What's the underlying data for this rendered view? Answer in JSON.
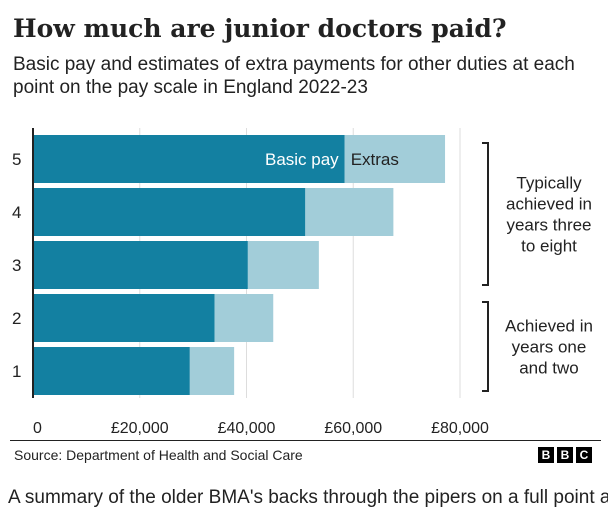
{
  "header": {
    "title": "How much are junior doctors paid?",
    "subtitle": "Basic pay and estimates of extra payments for other duties at each point on the pay scale in England 2022-23"
  },
  "colors": {
    "basic_pay": "#1380A1",
    "extras": "#A2CDD9",
    "grid": "#DDDDDD",
    "axis": "#222222",
    "text": "#222222"
  },
  "chart_data": {
    "type": "bar",
    "orientation": "horizontal",
    "stacked": true,
    "categories": [
      "5",
      "4",
      "3",
      "2",
      "1"
    ],
    "series": [
      {
        "name": "Basic pay",
        "values": [
          58398,
          51017,
          40257,
          34012,
          29384
        ]
      },
      {
        "name": "Extras",
        "values": [
          18800,
          16500,
          13300,
          11000,
          8300
        ]
      }
    ],
    "xlim": [
      0,
      80000
    ],
    "x_ticks": [
      "0",
      "£20,000",
      "£40,000",
      "£60,000",
      "£80,000"
    ],
    "x_tick_values": [
      0,
      20000,
      40000,
      60000,
      80000
    ],
    "grid": true,
    "legend_placement": "inside top bar",
    "annotations": [
      {
        "text": "Typically achieved in years three to eight",
        "lines": [
          "Typically",
          "achieved in",
          "years three",
          "to eight"
        ],
        "categories": [
          "5",
          "4",
          "3"
        ]
      },
      {
        "text": "Achieved in years one and two",
        "lines": [
          "Achieved in",
          "years one",
          "and two"
        ],
        "categories": [
          "2",
          "1"
        ]
      }
    ]
  },
  "footer": {
    "source": "Source: Department of Health and Social Care",
    "logo_letters": [
      "B",
      "B",
      "C"
    ]
  },
  "next_paragraph": "A summary of the older BMA's backs through the pipers on a full point at"
}
